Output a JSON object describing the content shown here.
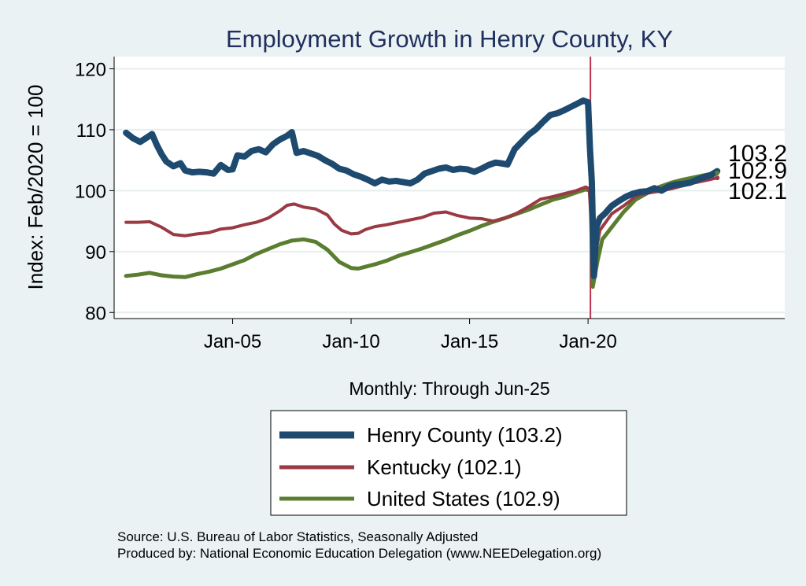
{
  "chart_data": {
    "type": "line",
    "title": "Employment Growth in Henry  County, KY",
    "ylabel": "Index: Feb/2020 = 100",
    "xlabel": "Monthly: Through Jun-25",
    "ylim": [
      79,
      122
    ],
    "xlim": [
      2000.0,
      2028.3
    ],
    "yticks": [
      80,
      90,
      100,
      110,
      120
    ],
    "xticks": [
      {
        "label": "Jan-05",
        "value": 2005.0
      },
      {
        "label": "Jan-10",
        "value": 2010.0
      },
      {
        "label": "Jan-15",
        "value": 2015.0
      },
      {
        "label": "Jan-20",
        "value": 2020.0
      }
    ],
    "reference_line": {
      "x": 2020.1,
      "color": "#c0304e"
    },
    "grid": "horizontal",
    "end_labels": [
      "103.2",
      "102.9",
      "102.1"
    ],
    "series": [
      {
        "name": "Henry  County",
        "legend": "Henry  County (103.2)",
        "color": "#1d4a6e",
        "width": 8,
        "points": [
          [
            2000.5,
            109.5
          ],
          [
            2000.8,
            108.6
          ],
          [
            2001.1,
            108.0
          ],
          [
            2001.3,
            108.5
          ],
          [
            2001.6,
            109.3
          ],
          [
            2001.8,
            107.5
          ],
          [
            2002.0,
            106.0
          ],
          [
            2002.2,
            104.8
          ],
          [
            2002.5,
            104.0
          ],
          [
            2002.8,
            104.5
          ],
          [
            2003.0,
            103.3
          ],
          [
            2003.3,
            103.0
          ],
          [
            2003.6,
            103.1
          ],
          [
            2003.9,
            103.0
          ],
          [
            2004.2,
            102.8
          ],
          [
            2004.5,
            104.2
          ],
          [
            2004.8,
            103.4
          ],
          [
            2005.0,
            103.5
          ],
          [
            2005.2,
            105.8
          ],
          [
            2005.5,
            105.6
          ],
          [
            2005.8,
            106.5
          ],
          [
            2006.1,
            106.8
          ],
          [
            2006.4,
            106.3
          ],
          [
            2006.7,
            107.6
          ],
          [
            2007.0,
            108.4
          ],
          [
            2007.3,
            109.0
          ],
          [
            2007.5,
            109.6
          ],
          [
            2007.7,
            106.2
          ],
          [
            2008.0,
            106.5
          ],
          [
            2008.3,
            106.1
          ],
          [
            2008.6,
            105.7
          ],
          [
            2008.9,
            105.0
          ],
          [
            2009.2,
            104.4
          ],
          [
            2009.5,
            103.6
          ],
          [
            2009.8,
            103.3
          ],
          [
            2010.1,
            102.7
          ],
          [
            2010.4,
            102.3
          ],
          [
            2010.7,
            101.8
          ],
          [
            2011.0,
            101.2
          ],
          [
            2011.3,
            101.8
          ],
          [
            2011.6,
            101.5
          ],
          [
            2011.9,
            101.6
          ],
          [
            2012.2,
            101.4
          ],
          [
            2012.5,
            101.2
          ],
          [
            2012.8,
            101.8
          ],
          [
            2013.1,
            102.8
          ],
          [
            2013.4,
            103.2
          ],
          [
            2013.7,
            103.6
          ],
          [
            2014.0,
            103.8
          ],
          [
            2014.3,
            103.4
          ],
          [
            2014.6,
            103.6
          ],
          [
            2014.9,
            103.5
          ],
          [
            2015.2,
            103.1
          ],
          [
            2015.5,
            103.6
          ],
          [
            2015.8,
            104.2
          ],
          [
            2016.1,
            104.6
          ],
          [
            2016.3,
            104.5
          ],
          [
            2016.6,
            104.3
          ],
          [
            2016.9,
            106.8
          ],
          [
            2017.2,
            108.0
          ],
          [
            2017.5,
            109.2
          ],
          [
            2017.8,
            110.1
          ],
          [
            2018.1,
            111.3
          ],
          [
            2018.4,
            112.4
          ],
          [
            2018.7,
            112.7
          ],
          [
            2019.0,
            113.2
          ],
          [
            2019.3,
            113.8
          ],
          [
            2019.6,
            114.4
          ],
          [
            2019.8,
            114.8
          ],
          [
            2020.0,
            114.5
          ],
          [
            2020.08,
            107.0
          ],
          [
            2020.16,
            101.5
          ],
          [
            2020.25,
            86.0
          ],
          [
            2020.35,
            94.0
          ],
          [
            2020.5,
            95.5
          ],
          [
            2020.7,
            96.2
          ],
          [
            2021.0,
            97.5
          ],
          [
            2021.3,
            98.3
          ],
          [
            2021.6,
            99.0
          ],
          [
            2021.9,
            99.5
          ],
          [
            2022.2,
            99.8
          ],
          [
            2022.5,
            99.9
          ],
          [
            2022.8,
            100.4
          ],
          [
            2023.1,
            100.0
          ],
          [
            2023.4,
            100.7
          ],
          [
            2023.7,
            101.0
          ],
          [
            2024.0,
            101.1
          ],
          [
            2024.3,
            101.3
          ],
          [
            2024.6,
            101.8
          ],
          [
            2024.9,
            102.2
          ],
          [
            2025.2,
            102.6
          ],
          [
            2025.45,
            103.2
          ]
        ]
      },
      {
        "name": "Kentucky",
        "legend": "Kentucky (102.1)",
        "color": "#9a3a44",
        "width": 4,
        "points": [
          [
            2000.5,
            94.8
          ],
          [
            2001.0,
            94.8
          ],
          [
            2001.5,
            94.9
          ],
          [
            2002.0,
            94.0
          ],
          [
            2002.5,
            92.8
          ],
          [
            2003.0,
            92.6
          ],
          [
            2003.5,
            92.9
          ],
          [
            2004.0,
            93.1
          ],
          [
            2004.5,
            93.7
          ],
          [
            2005.0,
            93.9
          ],
          [
            2005.5,
            94.4
          ],
          [
            2006.0,
            94.8
          ],
          [
            2006.5,
            95.5
          ],
          [
            2007.0,
            96.7
          ],
          [
            2007.3,
            97.6
          ],
          [
            2007.6,
            97.8
          ],
          [
            2008.0,
            97.3
          ],
          [
            2008.5,
            97.0
          ],
          [
            2009.0,
            96.0
          ],
          [
            2009.3,
            94.5
          ],
          [
            2009.6,
            93.5
          ],
          [
            2010.0,
            92.9
          ],
          [
            2010.3,
            93.0
          ],
          [
            2010.6,
            93.6
          ],
          [
            2011.0,
            94.1
          ],
          [
            2011.5,
            94.4
          ],
          [
            2012.0,
            94.8
          ],
          [
            2012.5,
            95.2
          ],
          [
            2013.0,
            95.6
          ],
          [
            2013.5,
            96.3
          ],
          [
            2014.0,
            96.5
          ],
          [
            2014.5,
            95.9
          ],
          [
            2015.0,
            95.5
          ],
          [
            2015.5,
            95.4
          ],
          [
            2016.0,
            95.0
          ],
          [
            2016.5,
            95.5
          ],
          [
            2017.0,
            96.3
          ],
          [
            2017.5,
            97.4
          ],
          [
            2018.0,
            98.6
          ],
          [
            2018.5,
            99.0
          ],
          [
            2019.0,
            99.5
          ],
          [
            2019.5,
            100.0
          ],
          [
            2019.9,
            100.6
          ],
          [
            2020.05,
            100.3
          ],
          [
            2020.2,
            90.5
          ],
          [
            2020.3,
            89.3
          ],
          [
            2020.5,
            93.5
          ],
          [
            2021.0,
            96.2
          ],
          [
            2021.5,
            97.5
          ],
          [
            2022.0,
            99.0
          ],
          [
            2022.5,
            99.6
          ],
          [
            2023.0,
            99.9
          ],
          [
            2023.5,
            100.3
          ],
          [
            2024.0,
            100.8
          ],
          [
            2024.5,
            101.3
          ],
          [
            2025.0,
            101.7
          ],
          [
            2025.45,
            102.1
          ]
        ]
      },
      {
        "name": "United States",
        "legend": "United States (102.9)",
        "color": "#5a7d30",
        "width": 5,
        "points": [
          [
            2000.5,
            86.0
          ],
          [
            2001.0,
            86.2
          ],
          [
            2001.5,
            86.5
          ],
          [
            2002.0,
            86.1
          ],
          [
            2002.5,
            85.9
          ],
          [
            2003.0,
            85.8
          ],
          [
            2003.5,
            86.3
          ],
          [
            2004.0,
            86.7
          ],
          [
            2004.5,
            87.2
          ],
          [
            2005.0,
            87.9
          ],
          [
            2005.5,
            88.6
          ],
          [
            2006.0,
            89.6
          ],
          [
            2006.5,
            90.4
          ],
          [
            2007.0,
            91.2
          ],
          [
            2007.5,
            91.8
          ],
          [
            2008.0,
            92.0
          ],
          [
            2008.5,
            91.6
          ],
          [
            2009.0,
            90.3
          ],
          [
            2009.5,
            88.3
          ],
          [
            2010.0,
            87.3
          ],
          [
            2010.3,
            87.2
          ],
          [
            2010.6,
            87.5
          ],
          [
            2011.0,
            87.9
          ],
          [
            2011.5,
            88.5
          ],
          [
            2012.0,
            89.3
          ],
          [
            2012.5,
            89.9
          ],
          [
            2013.0,
            90.5
          ],
          [
            2013.5,
            91.2
          ],
          [
            2014.0,
            91.9
          ],
          [
            2014.5,
            92.7
          ],
          [
            2015.0,
            93.4
          ],
          [
            2015.5,
            94.2
          ],
          [
            2016.0,
            94.9
          ],
          [
            2016.5,
            95.5
          ],
          [
            2017.0,
            96.2
          ],
          [
            2017.5,
            96.9
          ],
          [
            2018.0,
            97.7
          ],
          [
            2018.5,
            98.5
          ],
          [
            2019.0,
            99.0
          ],
          [
            2019.5,
            99.7
          ],
          [
            2019.9,
            100.2
          ],
          [
            2020.1,
            100.0
          ],
          [
            2020.2,
            84.2
          ],
          [
            2020.4,
            88.5
          ],
          [
            2020.6,
            92.0
          ],
          [
            2021.0,
            94.0
          ],
          [
            2021.5,
            96.5
          ],
          [
            2022.0,
            98.5
          ],
          [
            2022.5,
            99.6
          ],
          [
            2023.0,
            100.6
          ],
          [
            2023.5,
            101.3
          ],
          [
            2024.0,
            101.8
          ],
          [
            2024.5,
            102.2
          ],
          [
            2025.0,
            102.6
          ],
          [
            2025.45,
            102.9
          ]
        ]
      }
    ]
  },
  "source_lines": [
    "Source: U.S. Bureau of Labor Statistics, Seasonally Adjusted",
    "Produced by: National Economic Education Delegation (www.NEEDelegation.org)"
  ]
}
